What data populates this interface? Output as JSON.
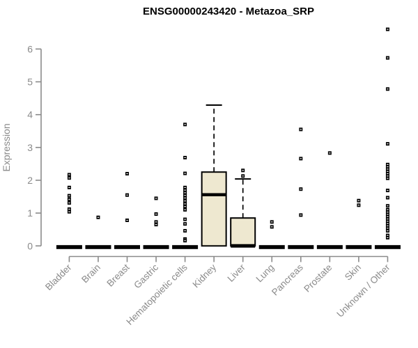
{
  "chart_data": {
    "type": "boxplot",
    "title": "ENSG00000243420 - Metazoa_SRP",
    "ylabel": "Expression",
    "xlabel": "",
    "ylim": [
      0,
      6.6
    ],
    "yticks": [
      0,
      1,
      2,
      3,
      4,
      5,
      6
    ],
    "grid": false,
    "legend": "none",
    "categories": [
      "Bladder",
      "Brain",
      "Breast",
      "Gastric",
      "Hematopoietic cells",
      "Kidney",
      "Liver",
      "Lung",
      "Pancreas",
      "Prostate",
      "Skin",
      "Unknown / Other"
    ],
    "series": [
      {
        "category": "Bladder",
        "zero_bar": true,
        "box": null,
        "points": [
          2.17,
          2.07,
          1.78,
          1.53,
          1.42,
          1.31,
          1.12,
          1.04
        ]
      },
      {
        "category": "Brain",
        "zero_bar": true,
        "box": null,
        "points": [
          0.87
        ]
      },
      {
        "category": "Breast",
        "zero_bar": true,
        "box": null,
        "points": [
          2.2,
          1.55,
          0.78
        ]
      },
      {
        "category": "Gastric",
        "zero_bar": true,
        "box": null,
        "points": [
          1.45,
          0.97,
          0.73,
          0.65
        ]
      },
      {
        "category": "Hematopoietic cells",
        "zero_bar": true,
        "box": null,
        "points": [
          3.7,
          2.69,
          2.21,
          1.78,
          1.7,
          1.62,
          1.54,
          1.46,
          1.37,
          1.28,
          1.2,
          1.1,
          0.81,
          0.67,
          0.46,
          0.21,
          0.16
        ]
      },
      {
        "category": "Kidney",
        "zero_bar": false,
        "box": {
          "q1": 0,
          "median": 1.56,
          "q3": 2.25,
          "whisker_low": 0,
          "whisker_high": 4.29
        },
        "points": []
      },
      {
        "category": "Liver",
        "zero_bar": false,
        "box": {
          "q1": 0,
          "median": 0,
          "q3": 0.85,
          "whisker_low": 0,
          "whisker_high": 2.04
        },
        "points": [
          2.3,
          2.13
        ]
      },
      {
        "category": "Lung",
        "zero_bar": true,
        "box": null,
        "points": [
          0.73,
          0.58
        ]
      },
      {
        "category": "Pancreas",
        "zero_bar": true,
        "box": null,
        "points": [
          3.55,
          2.66,
          1.73,
          0.94
        ]
      },
      {
        "category": "Prostate",
        "zero_bar": true,
        "box": null,
        "points": [
          2.83
        ]
      },
      {
        "category": "Skin",
        "zero_bar": true,
        "box": null,
        "points": [
          1.38,
          1.24
        ]
      },
      {
        "category": "Unknown / Other",
        "zero_bar": true,
        "box": null,
        "points": [
          6.6,
          5.73,
          4.78,
          3.11,
          2.48,
          2.41,
          2.34,
          2.27,
          2.2,
          2.13,
          2.06,
          1.69,
          1.47,
          1.22,
          1.1,
          1.03,
          0.96,
          0.89,
          0.82,
          0.75,
          0.68,
          0.61,
          0.54,
          0.46,
          0.32,
          0.25
        ]
      }
    ],
    "colors": {
      "box_fill": "#EEE8D0",
      "box_stroke": "#000000",
      "point": "#000000",
      "point_notch": "#ffffff",
      "zero_bar": "#000000",
      "axis": "#8A8A8A",
      "tick_label": "#8A8A8A",
      "title": "#000000"
    }
  }
}
